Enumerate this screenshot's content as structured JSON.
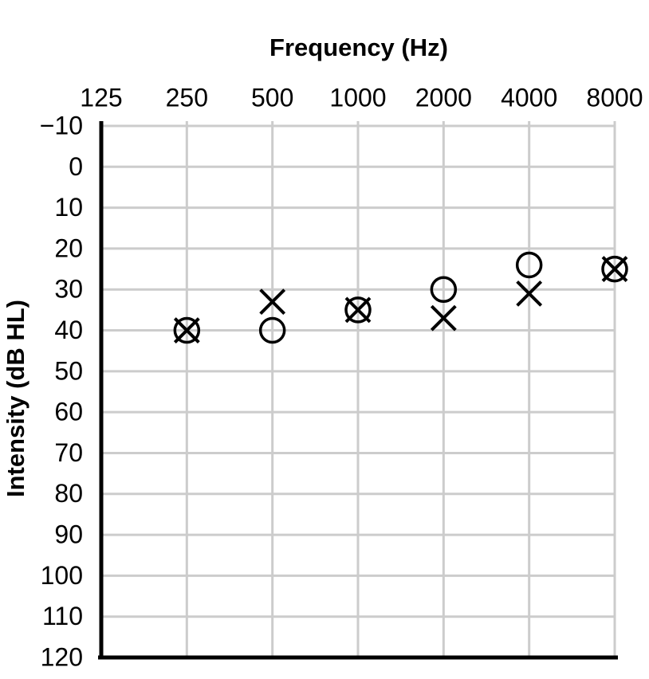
{
  "chart_data": {
    "type": "scatter",
    "title": "Frequency (Hz)",
    "y_label": "Intensity (dB HL)",
    "x": [
      250,
      500,
      1000,
      2000,
      4000,
      8000
    ],
    "xscale": "log",
    "xlim": [
      125,
      8000
    ],
    "xticks": [
      125,
      250,
      500,
      1000,
      2000,
      4000,
      8000
    ],
    "ylim": [
      -10,
      120
    ],
    "y_inverted": true,
    "yticks": [
      {
        "value": -10,
        "label": "−10"
      },
      0,
      10,
      20,
      30,
      40,
      50,
      60,
      70,
      80,
      90,
      100,
      110,
      120
    ],
    "grid": true,
    "series": [
      {
        "marker": "circle",
        "color": "#000000",
        "values": [
          40,
          40,
          35,
          30,
          24,
          25
        ]
      },
      {
        "marker": "x",
        "color": "#000000",
        "values": [
          40,
          33,
          35,
          37,
          31,
          25
        ]
      }
    ]
  }
}
